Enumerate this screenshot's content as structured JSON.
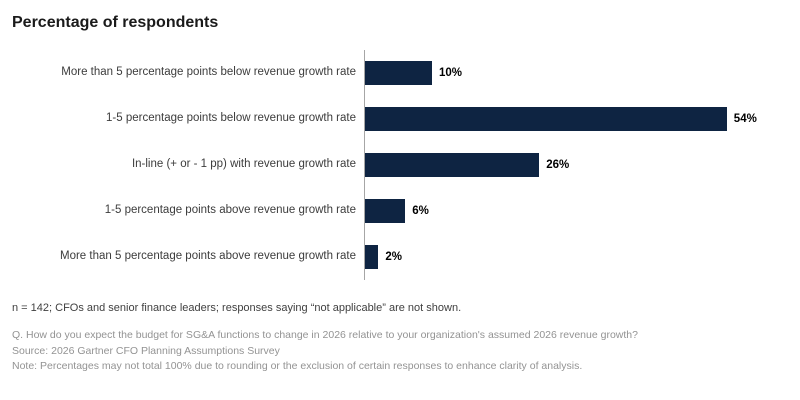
{
  "title": "Percentage of respondents",
  "chart_data": {
    "type": "bar",
    "orientation": "horizontal",
    "title": "Percentage of respondents",
    "categories": [
      "More than 5 percentage points below revenue growth rate",
      "1-5 percentage points below revenue growth rate",
      "In-line (+ or - 1 pp) with revenue growth rate",
      "1-5 percentage points above revenue growth rate",
      "More than 5 percentage points above revenue growth rate"
    ],
    "values": [
      10,
      54,
      26,
      6,
      2
    ],
    "value_suffix": "%",
    "bar_color": "#0e2442",
    "xlim": [
      0,
      60
    ],
    "grid": false,
    "legend": "none",
    "data_labels": "end-of-bar"
  },
  "footnotes": {
    "sample": "n = 142; CFOs and senior finance leaders; responses saying “not applicable” are not shown.",
    "question": "Q. How do you expect the budget for SG&A functions to change in 2026 relative to your organization's assumed 2026 revenue growth?",
    "source": "Source: 2026 Gartner CFO Planning Assumptions Survey",
    "note": "Note: Percentages may not total 100% due to rounding or the exclusion of certain responses to enhance clarity of analysis."
  }
}
